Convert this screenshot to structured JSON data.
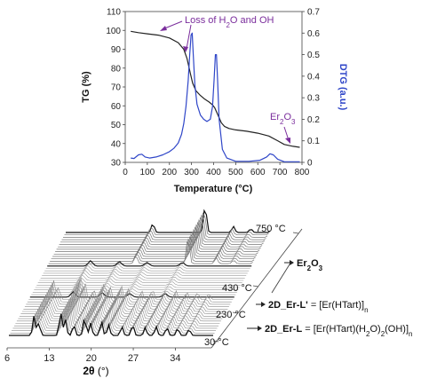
{
  "chart_data": [
    {
      "type": "line",
      "xlabel": "Temperature (°C)",
      "ylabel": "TG (%)",
      "y2label": "DTG (a.u.)",
      "xlim": [
        0,
        800
      ],
      "ylim": [
        30,
        110
      ],
      "y2lim": [
        0,
        0.7
      ],
      "xticks": [
        0,
        100,
        200,
        300,
        400,
        500,
        600,
        700,
        800
      ],
      "yticks": [
        30,
        40,
        50,
        60,
        70,
        80,
        90,
        100,
        110
      ],
      "y2ticks": [
        "0",
        "0.1",
        "0.2",
        "0.3",
        "0.4",
        "0.5",
        "0.6",
        "0.7"
      ],
      "grid": false,
      "series": [
        {
          "axis": "left",
          "color": "#222222",
          "x": [
            25,
            60,
            100,
            150,
            200,
            240,
            265,
            280,
            295,
            305,
            320,
            340,
            360,
            380,
            395,
            405,
            420,
            435,
            450,
            470,
            500,
            550,
            600,
            650,
            690,
            720,
            760,
            790
          ],
          "y": [
            99.5,
            98.8,
            98.2,
            97.5,
            96,
            93.5,
            90,
            85,
            77,
            72,
            68,
            65.5,
            63.5,
            62,
            60.5,
            59,
            55,
            51,
            49,
            48,
            47.2,
            46.5,
            45.5,
            44,
            41.5,
            39.5,
            38.5,
            38
          ]
        },
        {
          "axis": "right",
          "color": "#2f46c8",
          "x": [
            25,
            40,
            60,
            75,
            90,
            110,
            140,
            170,
            200,
            220,
            240,
            255,
            265,
            275,
            285,
            292,
            298,
            303,
            308,
            315,
            325,
            340,
            355,
            370,
            385,
            395,
            402,
            408,
            413,
            418,
            425,
            440,
            460,
            500,
            560,
            610,
            640,
            655,
            670,
            690,
            720,
            760,
            790
          ],
          "y": [
            0.02,
            0.018,
            0.035,
            0.038,
            0.025,
            0.02,
            0.025,
            0.035,
            0.05,
            0.065,
            0.09,
            0.13,
            0.18,
            0.26,
            0.38,
            0.5,
            0.59,
            0.6,
            0.5,
            0.36,
            0.27,
            0.22,
            0.2,
            0.19,
            0.2,
            0.26,
            0.38,
            0.5,
            0.5,
            0.38,
            0.2,
            0.06,
            0.02,
            0.005,
            0.005,
            0.01,
            0.025,
            0.04,
            0.035,
            0.015,
            0.003,
            0.003,
            0.003
          ]
        }
      ],
      "annotations": [
        {
          "text_pre": "Loss of H",
          "sub": "2",
          "text_post": "O and OH",
          "x": 300,
          "y": 100
        },
        {
          "text_pre": "Er",
          "sub": "2",
          "text_post": "O",
          "sub2": "3",
          "x": 650,
          "y": 43
        }
      ]
    },
    {
      "type": "line",
      "subtype": "waterfall",
      "xlabel_main": "2θ",
      "xlabel_unit": " (°)",
      "xlim": [
        6,
        40
      ],
      "xticks": [
        6,
        13,
        20,
        27,
        34
      ],
      "stack_count": 44,
      "temperature_labels": [
        "750 °C",
        "430 °C",
        "230 °C",
        "30 °C"
      ],
      "phases": [
        {
          "name": "Er",
          "sub": "2",
          "post": "O",
          "sub2": "3",
          "formula": ""
        },
        {
          "name": "2D_Er-L'",
          "formula_pre": " = [Er(HTart)]",
          "formula_sub": "n"
        },
        {
          "name": "2D_Er-L",
          "formula_pre": " = [Er(HTart)(H",
          "formula_sub": "2",
          "formula_mid": "O)",
          "formula_sub2": "2",
          "formula_post": "(OH)]",
          "formula_sub3": "n"
        }
      ]
    }
  ]
}
